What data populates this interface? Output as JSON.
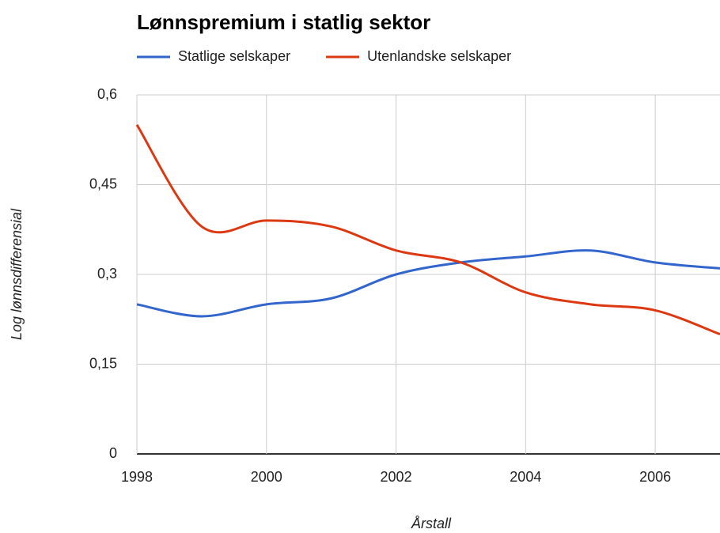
{
  "chart_data": {
    "type": "line",
    "title": "Lønnspremium i statlig sektor",
    "x_label": "Årstall",
    "y_label": "Log lønnsdifferensial",
    "x": [
      1998,
      1999,
      2000,
      2001,
      2002,
      2003,
      2004,
      2005,
      2006,
      2007
    ],
    "series": [
      {
        "name": "Statlige selskaper",
        "color": "#3366cc",
        "values": [
          0.25,
          0.23,
          0.25,
          0.26,
          0.3,
          0.32,
          0.33,
          0.34,
          0.32,
          0.31
        ]
      },
      {
        "name": "Utenlandske selskaper",
        "color": "#dc3912",
        "values": [
          0.55,
          0.38,
          0.39,
          0.38,
          0.34,
          0.32,
          0.27,
          0.25,
          0.24,
          0.2
        ]
      }
    ],
    "xlim": [
      1998,
      2007
    ],
    "xticks": [
      1998,
      2000,
      2002,
      2004,
      2006
    ],
    "ylim": [
      0,
      0.6
    ],
    "yticks": [
      0,
      {
        "value": 0.15,
        "label": "0,15"
      },
      {
        "value": 0.3,
        "label": "0,3"
      },
      {
        "value": 0.45,
        "label": "0,45"
      },
      {
        "value": 0.6,
        "label": "0,6"
      }
    ],
    "grid": true,
    "legend": "top"
  }
}
